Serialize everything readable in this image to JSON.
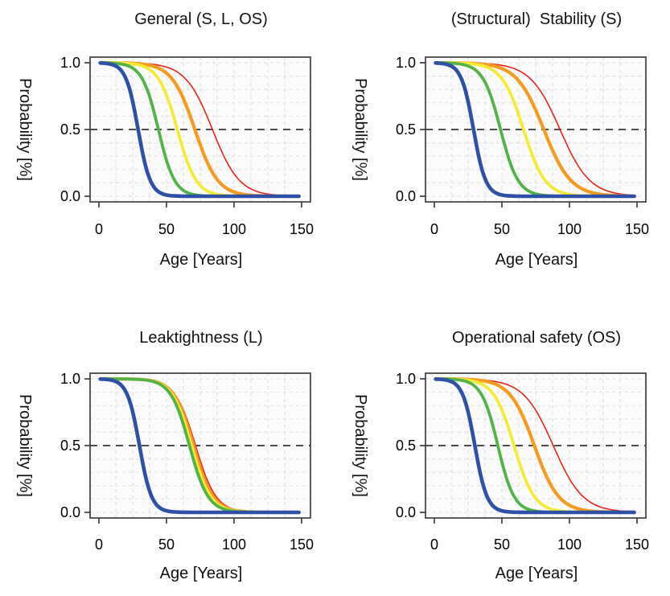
{
  "colors": {
    "panel_bg": "#fbfbfb",
    "grid": "#e3e3e3",
    "reference_line": "#4d4d4d",
    "axis": "#3f3f3f",
    "text": "#000000",
    "curve_blue": "#2d51a7",
    "curve_green": "#52b447",
    "curve_yellow": "#f6ea38",
    "curve_orange": "#f59b20",
    "curve_red": "#e8221c"
  },
  "chart_data": [
    {
      "type": "line",
      "panel": "top-left",
      "title": "General (S, L, OS)",
      "xlabel": "Age [Years]",
      "ylabel": "Probability [%]",
      "xlim": [
        0,
        150
      ],
      "ylim": [
        0,
        1
      ],
      "x_ticks": [
        0,
        50,
        100,
        150
      ],
      "y_ticks": [
        {
          "value": 1.0,
          "label": "1.0"
        },
        {
          "value": 0.5,
          "label": "0.5"
        },
        {
          "value": 0.0,
          "label": "0.0"
        }
      ],
      "reference_line_y": 0.5,
      "grid": {
        "vertical_step_years": 12.5,
        "horizontal_step": 0.1,
        "style": "light-dashed"
      },
      "curve_model": "probability = 1 / (1 + exp((age - age50)/slope)), decreasing sigmoid from 1.0 to 0.0",
      "series": [
        {
          "name": "red",
          "color": "#e8221c",
          "line_width": 1.6,
          "age50": 84,
          "slope": 10
        },
        {
          "name": "orange",
          "color": "#f59b20",
          "line_width": 4.2,
          "age50": 71,
          "slope": 8.5
        },
        {
          "name": "yellow",
          "color": "#f6ea38",
          "line_width": 3.8,
          "age50": 58,
          "slope": 7
        },
        {
          "name": "green",
          "color": "#52b447",
          "line_width": 3.8,
          "age50": 44,
          "slope": 6
        },
        {
          "name": "blue",
          "color": "#2d51a7",
          "line_width": 4.6,
          "age50": 29,
          "slope": 4.5
        }
      ]
    },
    {
      "type": "line",
      "panel": "top-right",
      "title": "(Structural)  Stability (S)",
      "xlabel": "Age [Years]",
      "ylabel": "Probability [%]",
      "xlim": [
        0,
        150
      ],
      "ylim": [
        0,
        1
      ],
      "x_ticks": [
        0,
        50,
        100,
        150
      ],
      "y_ticks": [
        {
          "value": 1.0,
          "label": "1.0"
        },
        {
          "value": 0.5,
          "label": "0.5"
        },
        {
          "value": 0.0,
          "label": "0.0"
        }
      ],
      "reference_line_y": 0.5,
      "grid": {
        "vertical_step_years": 12.5,
        "horizontal_step": 0.1,
        "style": "light-dashed"
      },
      "curve_model": "probability = 1 / (1 + exp((age - age50)/slope)), decreasing sigmoid from 1.0 to 0.0",
      "series": [
        {
          "name": "red",
          "color": "#e8221c",
          "line_width": 1.6,
          "age50": 93,
          "slope": 11
        },
        {
          "name": "orange",
          "color": "#f59b20",
          "line_width": 4.2,
          "age50": 81,
          "slope": 10
        },
        {
          "name": "yellow",
          "color": "#f6ea38",
          "line_width": 3.8,
          "age50": 66,
          "slope": 8
        },
        {
          "name": "green",
          "color": "#52b447",
          "line_width": 3.8,
          "age50": 49,
          "slope": 6.5
        },
        {
          "name": "blue",
          "color": "#2d51a7",
          "line_width": 4.6,
          "age50": 29,
          "slope": 4.5
        }
      ]
    },
    {
      "type": "line",
      "panel": "bottom-left",
      "title": "Leaktightness (L)",
      "xlabel": "Age [Years]",
      "ylabel": "Probability [%]",
      "xlim": [
        0,
        150
      ],
      "ylim": [
        0,
        1
      ],
      "x_ticks": [
        0,
        50,
        100,
        150
      ],
      "y_ticks": [
        {
          "value": 1.0,
          "label": "1.0"
        },
        {
          "value": 0.5,
          "label": "0.5"
        },
        {
          "value": 0.0,
          "label": "0.0"
        }
      ],
      "reference_line_y": 0.5,
      "grid": {
        "vertical_step_years": 12.5,
        "horizontal_step": 0.1,
        "style": "light-dashed"
      },
      "curve_model": "probability = 1 / (1 + exp((age - age50)/slope)), decreasing sigmoid from 1.0 to 0.0",
      "series": [
        {
          "name": "red",
          "color": "#e8221c",
          "line_width": 1.6,
          "age50": 71.5,
          "slope": 7.6
        },
        {
          "name": "orange",
          "color": "#f59b20",
          "line_width": 4.2,
          "age50": 70,
          "slope": 7.3
        },
        {
          "name": "yellow",
          "color": "#f6ea38",
          "line_width": 3.8,
          "age50": 68.5,
          "slope": 7.1
        },
        {
          "name": "green",
          "color": "#52b447",
          "line_width": 3.8,
          "age50": 67,
          "slope": 6.9
        },
        {
          "name": "blue",
          "color": "#2d51a7",
          "line_width": 4.6,
          "age50": 30,
          "slope": 4.5
        }
      ]
    },
    {
      "type": "line",
      "panel": "bottom-right",
      "title": "Operational safety (OS)",
      "xlabel": "Age [Years]",
      "ylabel": "Probability [%]",
      "xlim": [
        0,
        150
      ],
      "ylim": [
        0,
        1
      ],
      "x_ticks": [
        0,
        50,
        100,
        150
      ],
      "y_ticks": [
        {
          "value": 1.0,
          "label": "1.0"
        },
        {
          "value": 0.5,
          "label": "0.5"
        },
        {
          "value": 0.0,
          "label": "0.0"
        }
      ],
      "reference_line_y": 0.5,
      "grid": {
        "vertical_step_years": 12.5,
        "horizontal_step": 0.1,
        "style": "light-dashed"
      },
      "curve_model": "probability = 1 / (1 + exp((age - age50)/slope)), decreasing sigmoid from 1.0 to 0.0",
      "series": [
        {
          "name": "red",
          "color": "#e8221c",
          "line_width": 1.6,
          "age50": 88,
          "slope": 11
        },
        {
          "name": "orange",
          "color": "#f59b20",
          "line_width": 4.2,
          "age50": 74,
          "slope": 9
        },
        {
          "name": "yellow",
          "color": "#f6ea38",
          "line_width": 3.8,
          "age50": 59,
          "slope": 7.5
        },
        {
          "name": "green",
          "color": "#52b447",
          "line_width": 3.8,
          "age50": 47,
          "slope": 6
        },
        {
          "name": "blue",
          "color": "#2d51a7",
          "line_width": 4.6,
          "age50": 30,
          "slope": 4.5
        }
      ]
    }
  ]
}
